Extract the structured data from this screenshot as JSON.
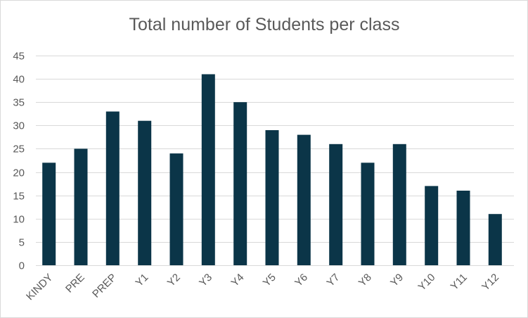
{
  "chart_data": {
    "type": "bar",
    "title": "Total number of Students per class",
    "xlabel": "",
    "ylabel": "",
    "categories": [
      "KINDY",
      "PRE",
      "PREP",
      "Y1",
      "Y2",
      "Y3",
      "Y4",
      "Y5",
      "Y6",
      "Y7",
      "Y8",
      "Y9",
      "Y10",
      "Y11",
      "Y12"
    ],
    "values": [
      22,
      25,
      33,
      31,
      24,
      41,
      35,
      29,
      28,
      26,
      22,
      26,
      17,
      16,
      11
    ],
    "ylim": [
      0,
      45
    ],
    "yticks": [
      0,
      5,
      10,
      15,
      20,
      25,
      30,
      35,
      40,
      45
    ],
    "grid": "horizontal",
    "legend": "none",
    "bar_color": "#0b3548"
  }
}
